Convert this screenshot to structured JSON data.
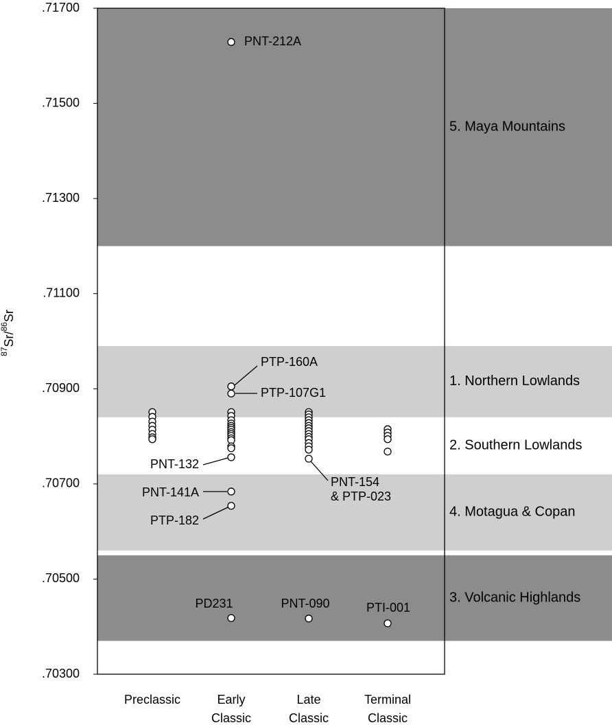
{
  "chart_data": {
    "type": "strip",
    "y_label": "87Sr/86Sr",
    "ylim": [
      0.703,
      0.717
    ],
    "yticks": [
      {
        "value": 0.703,
        "label": ".70300"
      },
      {
        "value": 0.705,
        "label": ".70500"
      },
      {
        "value": 0.707,
        "label": ".70700"
      },
      {
        "value": 0.709,
        "label": ".70900"
      },
      {
        "value": 0.711,
        "label": ".71100"
      },
      {
        "value": 0.713,
        "label": ".71300"
      },
      {
        "value": 0.715,
        "label": ".71500"
      },
      {
        "value": 0.717,
        "label": ".71700"
      }
    ],
    "bands": [
      {
        "label": "5. Maya Mountains",
        "range": [
          0.712,
          0.717
        ],
        "color": "#8c8c8c",
        "label_color": "#ffffff"
      },
      {
        "label": "1. Northern Lowlands",
        "range": [
          0.7084,
          0.7099
        ],
        "color": "#cfcfcf",
        "label_color": "#ffffff"
      },
      {
        "label": "2. Southern Lowlands",
        "range": [
          0.7072,
          0.7084
        ],
        "color": "#ffffff",
        "label_color": "#9a9a9a"
      },
      {
        "label": "4. Motagua & Copan",
        "range": [
          0.7056,
          0.7072
        ],
        "color": "#cfcfcf",
        "label_color": "#ffffff"
      },
      {
        "label": "3. Volcanic Highlands",
        "range": [
          0.7037,
          0.7055
        ],
        "color": "#8c8c8c",
        "label_color": "#ffffff"
      }
    ],
    "categories": [
      "Preclassic",
      "Early Classic",
      "Late Classic",
      "Terminal Classic"
    ],
    "values": [
      [
        0.70851,
        0.70841,
        0.70831,
        0.70822,
        0.70814,
        0.70805,
        0.70798,
        0.70794
      ],
      [
        0.71629,
        0.70905,
        0.7089,
        0.70851,
        0.70843,
        0.70834,
        0.70827,
        0.70822,
        0.70818,
        0.70814,
        0.70809,
        0.70805,
        0.70801,
        0.70796,
        0.70792,
        0.70779,
        0.70775,
        0.70756,
        0.70684,
        0.70654,
        0.70418
      ],
      [
        0.70851,
        0.70846,
        0.7084,
        0.70834,
        0.70828,
        0.70822,
        0.70817,
        0.70811,
        0.70805,
        0.70799,
        0.70794,
        0.70786,
        0.70779,
        0.70772,
        0.70753,
        0.70417
      ],
      [
        0.70815,
        0.70808,
        0.70801,
        0.70794,
        0.70768,
        0.70407
      ]
    ],
    "point_labels": [
      [
        null,
        null,
        null,
        null,
        null,
        null,
        null,
        null
      ],
      [
        "PNT-212A",
        "PTP-160A",
        "PTP-107G1",
        null,
        null,
        null,
        null,
        null,
        null,
        null,
        null,
        null,
        null,
        null,
        null,
        null,
        null,
        "PNT-132",
        "PNT-141A",
        "PTP-182",
        "PD231"
      ],
      [
        null,
        null,
        null,
        null,
        null,
        null,
        null,
        null,
        null,
        null,
        null,
        null,
        null,
        null,
        "PNT-154 & PTP-023",
        "PNT-090"
      ],
      [
        null,
        null,
        null,
        null,
        null,
        "PTI-001"
      ]
    ]
  }
}
